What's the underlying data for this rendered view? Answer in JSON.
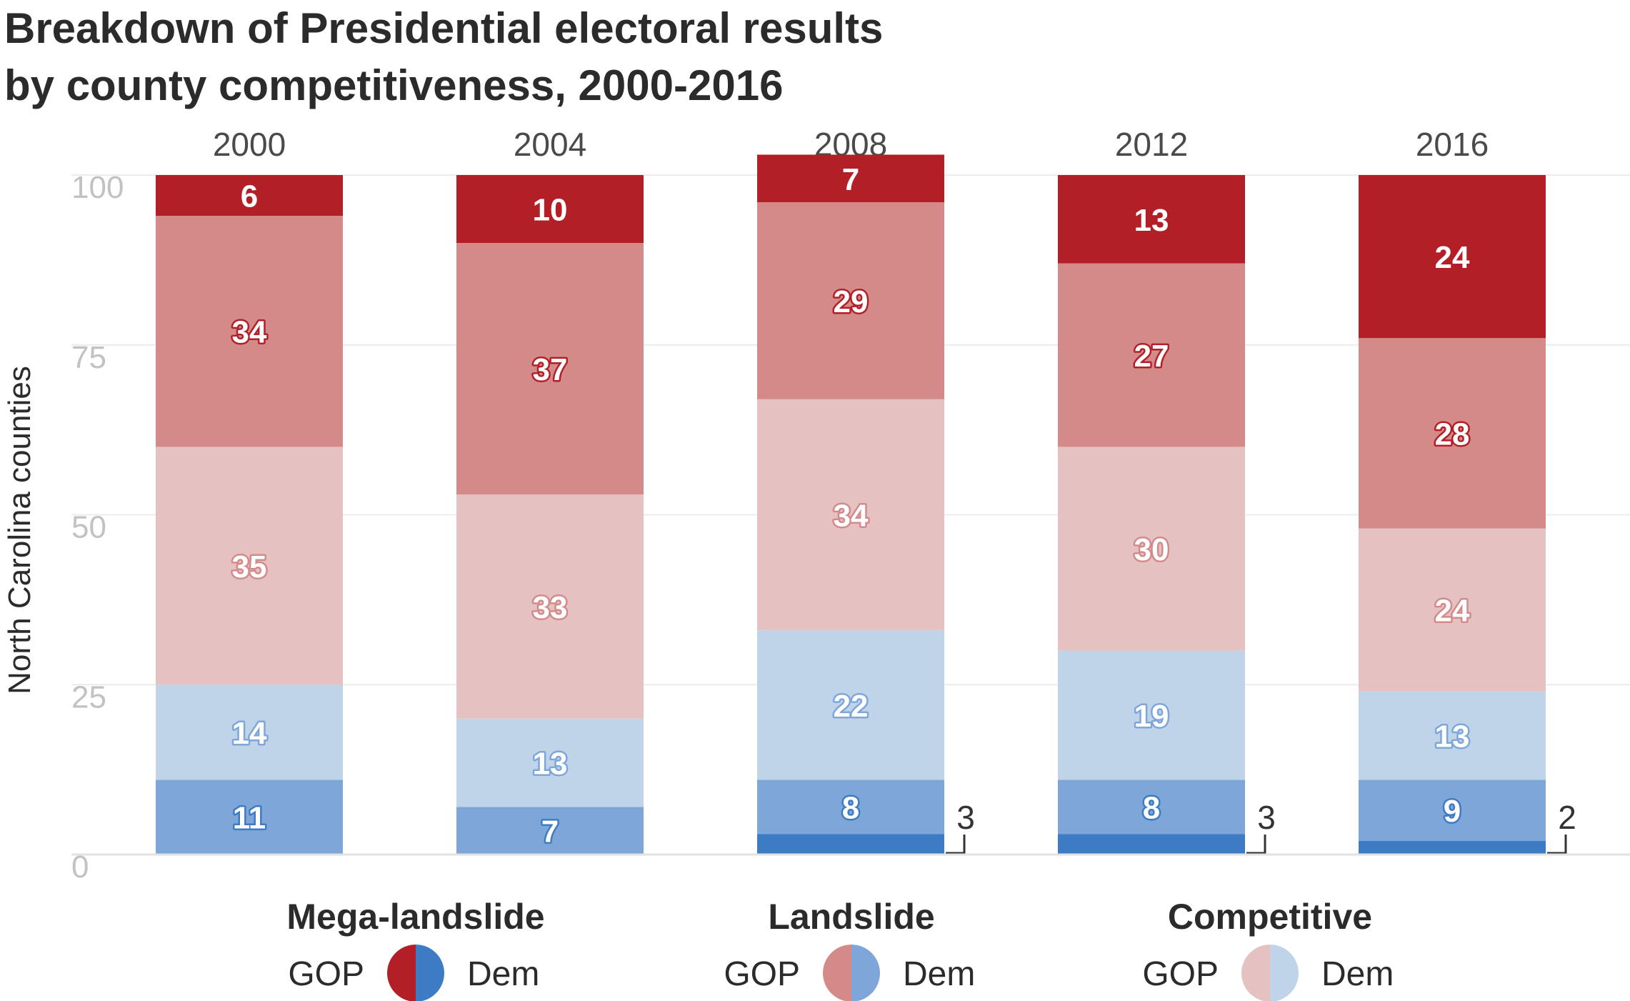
{
  "chart_data": {
    "type": "bar",
    "stacked": true,
    "title": [
      "Breakdown of Presidential electoral results",
      "by county competitiveness, 2000-2016"
    ],
    "ylabel": "North Carolina counties",
    "ylim": [
      0,
      100
    ],
    "yticks": [
      "0",
      "25",
      "50",
      "75",
      "100"
    ],
    "grid": true,
    "categories": [
      "2000",
      "2004",
      "2008",
      "2012",
      "2016"
    ],
    "series": [
      {
        "key": "dem_mega",
        "color": "#3d7bc4",
        "label_color": "#ffffff",
        "label_stroke": "#3d7bc4",
        "values": [
          0,
          0,
          3,
          3,
          2
        ]
      },
      {
        "key": "dem_landslide",
        "color": "#7ea6d9",
        "label_color": "#ffffff",
        "label_stroke": "#3d7bc4",
        "values": [
          11,
          7,
          8,
          8,
          9
        ]
      },
      {
        "key": "dem_competitive",
        "color": "#c0d4e9",
        "label_color": "#ffffff",
        "label_stroke": "#7ea6d9",
        "values": [
          14,
          13,
          22,
          19,
          13
        ]
      },
      {
        "key": "gop_competitive",
        "color": "#e5c1c1",
        "label_color": "#ffffff",
        "label_stroke": "#d48a8a",
        "values": [
          35,
          33,
          34,
          30,
          24
        ]
      },
      {
        "key": "gop_landslide",
        "color": "#d48a88",
        "label_color": "#ffffff",
        "label_stroke": "#b31f27",
        "values": [
          34,
          37,
          29,
          27,
          28
        ]
      },
      {
        "key": "gop_mega",
        "color": "#b31f27",
        "label_color": "#ffffff",
        "label_stroke": "#b31f27",
        "values": [
          6,
          10,
          7,
          13,
          24
        ]
      }
    ],
    "legend": [
      {
        "title": "Mega-landslide",
        "left": "GOP",
        "right": "Dem",
        "gop_color": "#b31f27",
        "dem_color": "#3d7bc4"
      },
      {
        "title": "Landslide",
        "left": "GOP",
        "right": "Dem",
        "gop_color": "#d48a88",
        "dem_color": "#7ea6d9"
      },
      {
        "title": "Competitive",
        "left": "GOP",
        "right": "Dem",
        "gop_color": "#e5c1c1",
        "dem_color": "#c0d4e9"
      }
    ],
    "legend_position": "bottom"
  }
}
